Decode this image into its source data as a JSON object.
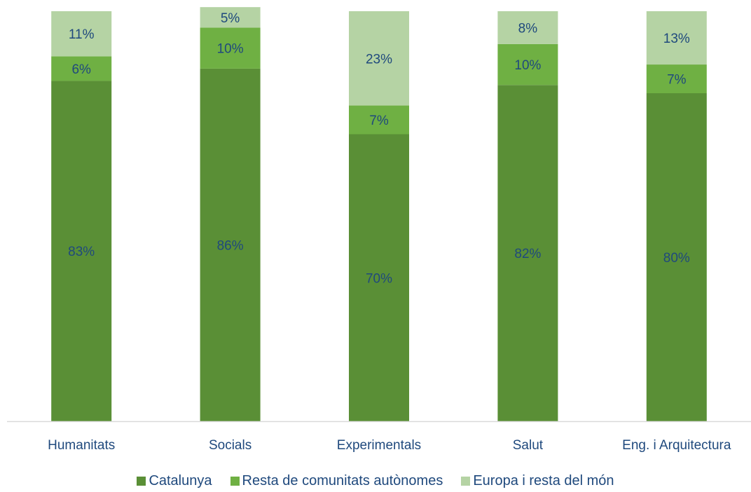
{
  "chart_data": {
    "type": "bar",
    "stacked": true,
    "percent_stacked": true,
    "categories": [
      "Humanitats",
      "Socials",
      "Experimentals",
      "Salut",
      "Eng. i Arquitectura"
    ],
    "series": [
      {
        "name": "Catalunya",
        "color": "#5a8f36",
        "values": [
          83,
          86,
          70,
          82,
          80
        ],
        "labels": [
          "83%",
          "86%",
          "70%",
          "82%",
          "80%"
        ]
      },
      {
        "name": "Resta de comunitats autònomes",
        "color": "#6fb043",
        "values": [
          6,
          10,
          7,
          10,
          7
        ],
        "labels": [
          "6%",
          "10%",
          "7%",
          "10%",
          "7%"
        ]
      },
      {
        "name": "Europa i resta del món",
        "color": "#b5d3a4",
        "values": [
          11,
          5,
          23,
          8,
          13
        ],
        "labels": [
          "11%",
          "5%",
          "23%",
          "8%",
          "13%"
        ]
      }
    ],
    "ylim": [
      0,
      100
    ],
    "grid": false,
    "legend_position": "bottom",
    "label_color": "#1f497d"
  }
}
